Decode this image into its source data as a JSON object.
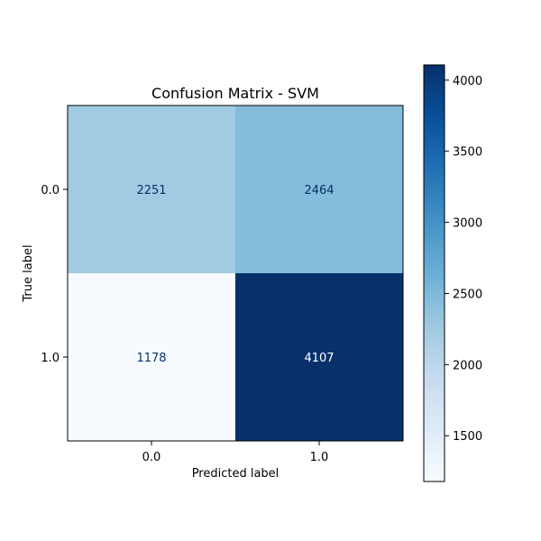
{
  "chart_data": {
    "type": "heatmap",
    "title": "Confusion Matrix - SVM",
    "xlabel": "Predicted label",
    "ylabel": "True label",
    "x_categories": [
      "0.0",
      "1.0"
    ],
    "y_categories": [
      "0.0",
      "1.0"
    ],
    "values": [
      [
        2251,
        2464
      ],
      [
        1178,
        4107
      ]
    ],
    "colormap": "Blues",
    "colorbar": {
      "min": 1178,
      "max": 4107,
      "ticks": [
        1500,
        2000,
        2500,
        3000,
        3500,
        4000
      ]
    },
    "grid": false
  },
  "colors": {
    "axis": "#000000",
    "light_text": "#ffffff",
    "dark_text": "#08306b"
  }
}
